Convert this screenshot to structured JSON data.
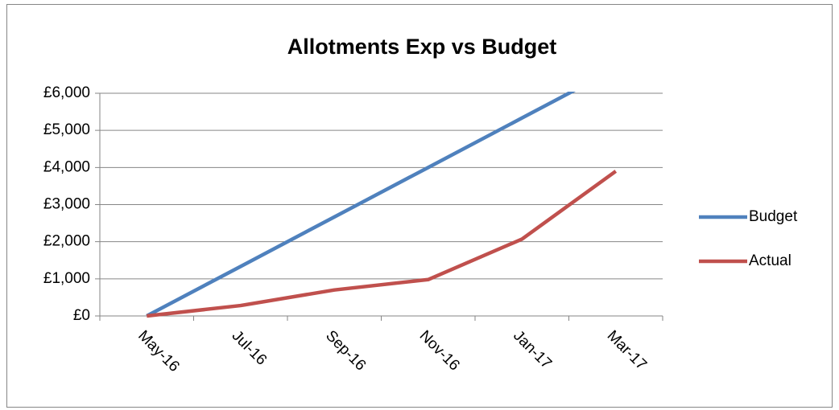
{
  "chart_data": {
    "type": "line",
    "title": "Allotments Exp vs Budget",
    "categories": [
      "May-16",
      "Jul-16",
      "Sep-16",
      "Nov-16",
      "Jan-17",
      "Mar-17"
    ],
    "series": [
      {
        "name": "Budget",
        "color": "#4f81bd",
        "values": [
          0,
          1333,
          2667,
          4000,
          5333,
          6667
        ]
      },
      {
        "name": "Actual",
        "color": "#c0504d",
        "values": [
          0,
          280,
          700,
          980,
          2070,
          3900
        ]
      }
    ],
    "ylim": [
      0,
      6000
    ],
    "yticks": [
      {
        "value": 0,
        "label": "£0"
      },
      {
        "value": 1000,
        "label": "£1,000"
      },
      {
        "value": 2000,
        "label": "£2,000"
      },
      {
        "value": 3000,
        "label": "£3,000"
      },
      {
        "value": 4000,
        "label": "£4,000"
      },
      {
        "value": 5000,
        "label": "£5,000"
      },
      {
        "value": 6000,
        "label": "£6,000"
      }
    ],
    "grid": true,
    "legend": "right"
  }
}
